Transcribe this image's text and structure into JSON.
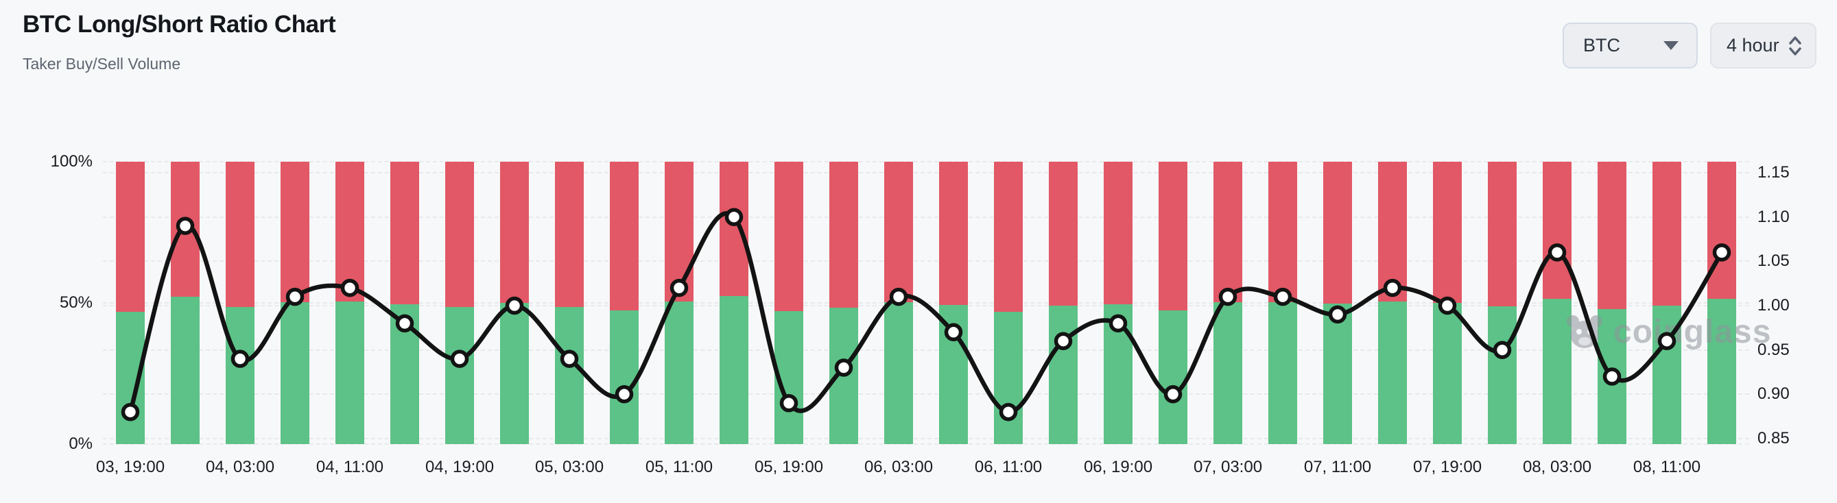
{
  "header": {
    "title": "BTC Long/Short Ratio Chart",
    "subtitle": "Taker Buy/Sell Volume"
  },
  "controls": {
    "symbol_dropdown": {
      "value": "BTC",
      "icon": "caret-down-icon"
    },
    "interval_dropdown": {
      "value": "4 hour",
      "icon": "up-down-chevrons-icon"
    }
  },
  "watermark": {
    "text": "coinglass",
    "icon": "coinglass-bull-icon"
  },
  "colors": {
    "long_green": "#5cc287",
    "short_red": "#e25866",
    "line_black": "#131313",
    "marker_fill": "#ffffff",
    "background": "#f7f8f9",
    "gridline": "#e7e9ec",
    "axis_text": "#191c21",
    "watermark_gray": "#8f939b"
  },
  "chart_data": {
    "type": "bar",
    "subtype": "stacked-100%-bars-with-smooth-line-overlay",
    "title": "BTC Long/Short Ratio Chart",
    "subtitle": "Taker Buy/Sell Volume",
    "bar_count": 30,
    "interval_per_bar": "4 hours",
    "grid": "dashed horizontal",
    "legend": "none",
    "left_axis": {
      "unit": "%",
      "min": 0,
      "max": 100,
      "ticks": [
        "100%",
        "50%",
        "0%"
      ]
    },
    "right_axis": {
      "min": 0.845,
      "max": 1.155,
      "ticks": [
        "1.15",
        "1.10",
        "1.05",
        "1.00",
        "0.95",
        "0.90",
        "0.85"
      ]
    },
    "x_axis": {
      "tick_labels": [
        "03, 19:00",
        "04, 03:00",
        "04, 11:00",
        "04, 19:00",
        "05, 03:00",
        "05, 11:00",
        "05, 19:00",
        "06, 03:00",
        "06, 11:00",
        "06, 19:00",
        "07, 03:00",
        "07, 11:00",
        "07, 19:00",
        "08, 03:00",
        "08, 11:00"
      ],
      "tick_every_n_bars": 2,
      "first_tick_bar_index": 0
    },
    "series": [
      {
        "name": "Long %",
        "type": "bar",
        "stack": "total",
        "axis": "left",
        "color": "#5cc287",
        "values": [
          46.8,
          52.2,
          48.5,
          50.2,
          50.5,
          49.5,
          48.5,
          50.0,
          48.5,
          47.4,
          50.5,
          52.4,
          47.1,
          48.2,
          50.2,
          49.2,
          46.8,
          49.0,
          49.5,
          47.4,
          50.2,
          50.2,
          49.7,
          50.5,
          50.0,
          48.7,
          51.5,
          47.9,
          49.0,
          51.5
        ]
      },
      {
        "name": "Short %",
        "type": "bar",
        "stack": "total",
        "axis": "left",
        "color": "#e25866",
        "values": [
          53.2,
          47.8,
          51.5,
          49.8,
          49.5,
          50.5,
          51.5,
          50.0,
          51.5,
          52.6,
          49.5,
          47.6,
          52.9,
          51.8,
          49.8,
          50.8,
          53.2,
          51.0,
          50.5,
          52.6,
          49.8,
          49.8,
          50.3,
          49.5,
          50.0,
          51.3,
          48.5,
          52.1,
          51.0,
          48.5
        ]
      },
      {
        "name": "Long/Short Ratio",
        "type": "line",
        "smooth": true,
        "axis": "right",
        "color": "#131313",
        "marker": "circle-white-black-border",
        "values": [
          0.88,
          1.09,
          0.94,
          1.01,
          1.02,
          0.98,
          0.94,
          1.0,
          0.94,
          0.9,
          1.02,
          1.1,
          0.89,
          0.93,
          1.01,
          0.97,
          0.88,
          0.96,
          0.98,
          0.9,
          1.01,
          1.01,
          0.99,
          1.02,
          1.0,
          0.95,
          1.06,
          0.92,
          0.96,
          1.06
        ]
      }
    ]
  }
}
